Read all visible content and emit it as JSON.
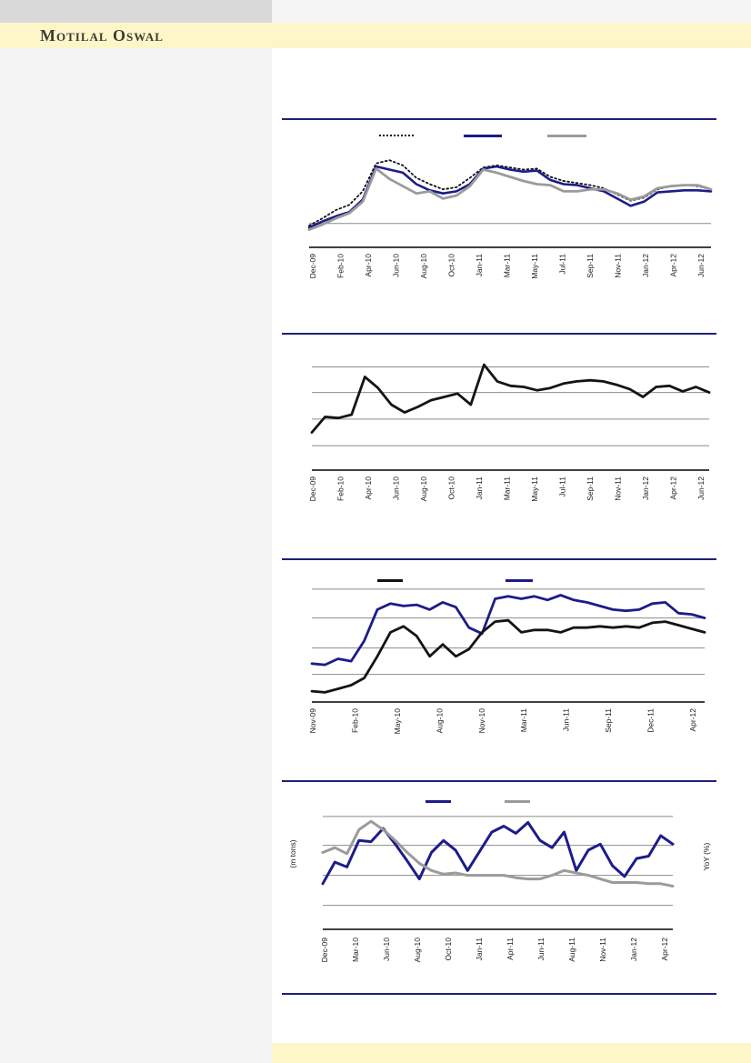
{
  "brand": {
    "logo_text": "Motilal Oswal"
  },
  "colors": {
    "banner_yellow": "#fdf6c9",
    "rule_navy": "#1f1f78",
    "line_navy": "#1c1c8a",
    "line_gray": "#9b9b9b",
    "line_black": "#141414",
    "grid_gray": "#8c8c8c",
    "sidebar_gray": "#f4f4f5",
    "topbar_gray": "#d9d9d9"
  },
  "chart_data": [
    {
      "id": "chart1",
      "type": "line",
      "title": "",
      "y_axis_tick_labels": "none",
      "ylim": [
        0,
        100
      ],
      "grid_values": [
        23
      ],
      "legend_position": "top",
      "legend": [
        {
          "name": "dotted-black-series",
          "style": "dotted",
          "color": "#111111"
        },
        {
          "name": "navy-series",
          "style": "solid",
          "color": "#1c1c8a"
        },
        {
          "name": "gray-series",
          "style": "solid",
          "color": "#9b9b9b"
        }
      ],
      "x_labels": [
        "Dec-09",
        "Feb-10",
        "Apr-10",
        "Jun-10",
        "Aug-10",
        "Oct-10",
        "Jan-11",
        "Mar-11",
        "May-11",
        "Jul-11",
        "Sep-11",
        "Nov-11",
        "Jan-12",
        "Apr-12",
        "Jun-12"
      ],
      "series": [
        {
          "name": "dotted-black-series",
          "color": "#111111",
          "width": 1.8,
          "dash": "1.8 3",
          "values": [
            21,
            28,
            36,
            41,
            54,
            81,
            84,
            79,
            67,
            61,
            56,
            58,
            67,
            77,
            79,
            77,
            75,
            76,
            68,
            64,
            62,
            60,
            57,
            51,
            45,
            48,
            56,
            59,
            60,
            59,
            56
          ]
        },
        {
          "name": "navy-series",
          "color": "#1c1c8a",
          "width": 2.6,
          "dash": "",
          "values": [
            19,
            25,
            30,
            34,
            46,
            78,
            75,
            72,
            61,
            55,
            52,
            54,
            61,
            76,
            78,
            75,
            73,
            74,
            65,
            61,
            60,
            57,
            54,
            47,
            40,
            44,
            53,
            54,
            55,
            55,
            54
          ]
        },
        {
          "name": "gray-series",
          "color": "#9b9b9b",
          "width": 2.8,
          "dash": "",
          "values": [
            17,
            22,
            28,
            33,
            44,
            76,
            66,
            59,
            52,
            54,
            47,
            50,
            59,
            75,
            72,
            68,
            64,
            61,
            60,
            54,
            54,
            56,
            56,
            52,
            46,
            49,
            57,
            59,
            60,
            60,
            56
          ]
        }
      ]
    },
    {
      "id": "chart2",
      "type": "line",
      "title": "",
      "y_axis_tick_labels": "none",
      "ylim": [
        0,
        100
      ],
      "grid_values": [
        93,
        70,
        46,
        22
      ],
      "legend": [],
      "x_labels": [
        "Dec-09",
        "Feb-10",
        "Apr-10",
        "Jun-10",
        "Aug-10",
        "Oct-10",
        "Jan-11",
        "Mar-11",
        "May-11",
        "Jul-11",
        "Sep-11",
        "Nov-11",
        "Jan-12",
        "Apr-12",
        "Jun-12"
      ],
      "series": [
        {
          "name": "black-series",
          "color": "#141414",
          "width": 2.8,
          "dash": "",
          "values": [
            34,
            48,
            47,
            50,
            84,
            74,
            59,
            52,
            57,
            63,
            66,
            69,
            59,
            95,
            80,
            76,
            75,
            72,
            74,
            78,
            80,
            81,
            80,
            77,
            73,
            66,
            75,
            76,
            71,
            75,
            70
          ]
        }
      ]
    },
    {
      "id": "chart3",
      "type": "line",
      "title": "",
      "y_axis_tick_labels": "none",
      "ylim": [
        0,
        100
      ],
      "grid_values": [
        94,
        70,
        45,
        23
      ],
      "legend_position": "top",
      "legend": [
        {
          "name": "black-series",
          "style": "solid",
          "color": "#111111"
        },
        {
          "name": "navy-series",
          "style": "solid",
          "color": "#1c1c8a"
        }
      ],
      "x_labels": [
        "Nov-09",
        "Feb-10",
        "May-10",
        "Aug-10",
        "Nov-10",
        "Mar-11",
        "Jun-11",
        "Sep-11",
        "Dec-11",
        "Apr-12"
      ],
      "series": [
        {
          "name": "navy-series",
          "color": "#1c1c8a",
          "width": 2.8,
          "dash": "",
          "values": [
            32,
            31,
            36,
            34,
            51,
            77,
            82,
            80,
            81,
            77,
            83,
            79,
            62,
            57,
            86,
            88,
            86,
            88,
            85,
            89,
            85,
            83,
            80,
            77,
            76,
            77,
            82,
            83,
            74,
            73,
            70
          ]
        },
        {
          "name": "black-series",
          "color": "#141414",
          "width": 2.8,
          "dash": "",
          "values": [
            9,
            8,
            11,
            14,
            20,
            38,
            58,
            63,
            55,
            38,
            48,
            38,
            44,
            58,
            67,
            68,
            58,
            60,
            60,
            58,
            62,
            62,
            63,
            62,
            63,
            62,
            66,
            67,
            64,
            61,
            58
          ]
        }
      ]
    },
    {
      "id": "chart4",
      "type": "line",
      "title": "",
      "y_left_title": "(m tons)",
      "y_right_title": "YoY (%)",
      "y_axis_tick_labels": "none",
      "ylim": [
        0,
        100
      ],
      "grid_values": [
        94,
        70,
        45,
        20
      ],
      "legend_position": "top",
      "legend": [
        {
          "name": "navy-series",
          "style": "solid",
          "color": "#1c1c8a"
        },
        {
          "name": "gray-series",
          "style": "solid",
          "color": "#9b9b9b"
        }
      ],
      "x_labels": [
        "Dec-09",
        "Mar-10",
        "Jun-10",
        "Aug-10",
        "Oct-10",
        "Jan-11",
        "Apr-11",
        "Jun-11",
        "Aug-11",
        "Nov-11",
        "Jan-12",
        "Apr-12"
      ],
      "series": [
        {
          "name": "navy-series",
          "color": "#1c1c8a",
          "width": 3,
          "dash": "",
          "values": [
            38,
            56,
            52,
            74,
            73,
            84,
            71,
            57,
            42,
            64,
            74,
            66,
            49,
            65,
            81,
            86,
            80,
            89,
            74,
            68,
            81,
            49,
            66,
            71,
            53,
            44,
            59,
            61,
            78,
            71
          ]
        },
        {
          "name": "gray-series",
          "color": "#9b9b9b",
          "width": 3,
          "dash": "",
          "values": [
            64,
            68,
            63,
            83,
            90,
            83,
            74,
            64,
            55,
            49,
            46,
            47,
            45,
            45,
            45,
            45,
            43,
            42,
            42,
            45,
            49,
            47,
            45,
            42,
            39,
            39,
            39,
            38,
            38,
            36
          ]
        }
      ]
    }
  ]
}
